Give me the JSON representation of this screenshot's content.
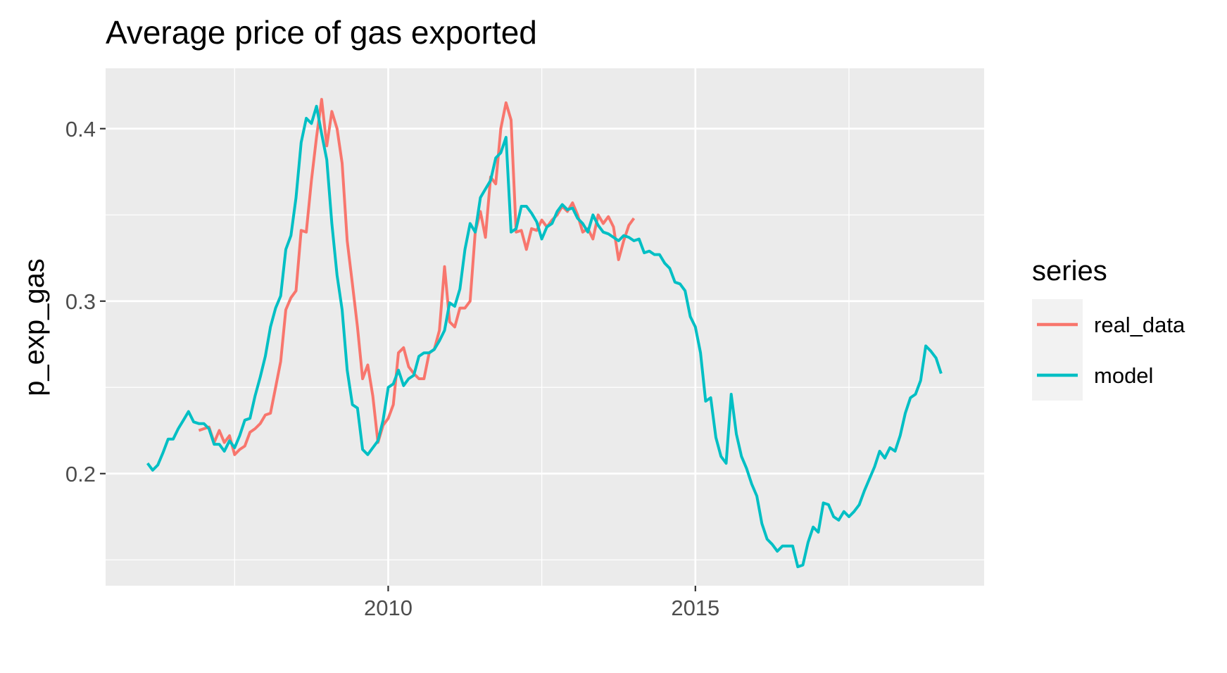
{
  "chart_data": {
    "type": "line",
    "title": "Average price of gas exported",
    "xlabel": "",
    "ylabel": "p_exp_gas",
    "xlim": [
      2005.4,
      2019.7
    ],
    "ylim": [
      0.135,
      0.435
    ],
    "x_ticks": [
      2010,
      2015
    ],
    "x_minor_ticks": [
      2007.5,
      2012.5,
      2017.5
    ],
    "x_tick_labels": [
      "2010",
      "2015"
    ],
    "y_ticks": [
      0.2,
      0.3,
      0.4
    ],
    "y_minor_ticks": [
      0.15,
      0.25,
      0.35
    ],
    "y_tick_labels": [
      "0.2",
      "0.3",
      "0.4"
    ],
    "grid": true,
    "legend": {
      "title": "series",
      "position": "right"
    },
    "series": [
      {
        "name": "real_data",
        "color": "#F8766D",
        "x": [
          2006.917,
          2007.0,
          2007.083,
          2007.167,
          2007.25,
          2007.333,
          2007.417,
          2007.5,
          2007.583,
          2007.667,
          2007.75,
          2007.833,
          2007.917,
          2008.0,
          2008.083,
          2008.167,
          2008.25,
          2008.333,
          2008.417,
          2008.5,
          2008.583,
          2008.667,
          2008.75,
          2008.833,
          2008.917,
          2009.0,
          2009.083,
          2009.167,
          2009.25,
          2009.333,
          2009.417,
          2009.5,
          2009.583,
          2009.667,
          2009.75,
          2009.833,
          2009.917,
          2010.0,
          2010.083,
          2010.167,
          2010.25,
          2010.333,
          2010.417,
          2010.5,
          2010.583,
          2010.667,
          2010.75,
          2010.833,
          2010.917,
          2011.0,
          2011.083,
          2011.167,
          2011.25,
          2011.333,
          2011.417,
          2011.5,
          2011.583,
          2011.667,
          2011.75,
          2011.833,
          2011.917,
          2012.0,
          2012.083,
          2012.167,
          2012.25,
          2012.333,
          2012.417,
          2012.5,
          2012.583,
          2012.667,
          2012.75,
          2012.833,
          2012.917,
          2013.0,
          2013.083,
          2013.167,
          2013.25,
          2013.333,
          2013.417,
          2013.5,
          2013.583,
          2013.667,
          2013.75,
          2013.833,
          2013.917,
          2014.0
        ],
        "y": [
          0.225,
          0.226,
          0.227,
          0.218,
          0.225,
          0.218,
          0.222,
          0.211,
          0.214,
          0.216,
          0.224,
          0.226,
          0.229,
          0.234,
          0.235,
          0.25,
          0.265,
          0.295,
          0.302,
          0.306,
          0.341,
          0.34,
          0.37,
          0.395,
          0.417,
          0.39,
          0.41,
          0.4,
          0.38,
          0.335,
          0.31,
          0.285,
          0.255,
          0.263,
          0.245,
          0.218,
          0.228,
          0.232,
          0.24,
          0.27,
          0.273,
          0.262,
          0.258,
          0.255,
          0.255,
          0.27,
          0.272,
          0.283,
          0.32,
          0.288,
          0.285,
          0.296,
          0.296,
          0.3,
          0.34,
          0.352,
          0.337,
          0.372,
          0.368,
          0.4,
          0.415,
          0.405,
          0.34,
          0.341,
          0.33,
          0.342,
          0.341,
          0.347,
          0.343,
          0.347,
          0.35,
          0.355,
          0.352,
          0.357,
          0.35,
          0.34,
          0.342,
          0.336,
          0.35,
          0.345,
          0.349,
          0.343,
          0.324,
          0.335,
          0.344,
          0.348
        ]
      },
      {
        "name": "model",
        "color": "#00BFC4",
        "x": [
          2006.083,
          2006.167,
          2006.25,
          2006.333,
          2006.417,
          2006.5,
          2006.583,
          2006.667,
          2006.75,
          2006.833,
          2006.917,
          2007.0,
          2007.083,
          2007.167,
          2007.25,
          2007.333,
          2007.417,
          2007.5,
          2007.583,
          2007.667,
          2007.75,
          2007.833,
          2007.917,
          2008.0,
          2008.083,
          2008.167,
          2008.25,
          2008.333,
          2008.417,
          2008.5,
          2008.583,
          2008.667,
          2008.75,
          2008.833,
          2008.917,
          2009.0,
          2009.083,
          2009.167,
          2009.25,
          2009.333,
          2009.417,
          2009.5,
          2009.583,
          2009.667,
          2009.75,
          2009.833,
          2009.917,
          2010.0,
          2010.083,
          2010.167,
          2010.25,
          2010.333,
          2010.417,
          2010.5,
          2010.583,
          2010.667,
          2010.75,
          2010.833,
          2010.917,
          2011.0,
          2011.083,
          2011.167,
          2011.25,
          2011.333,
          2011.417,
          2011.5,
          2011.583,
          2011.667,
          2011.75,
          2011.833,
          2011.917,
          2012.0,
          2012.083,
          2012.167,
          2012.25,
          2012.333,
          2012.417,
          2012.5,
          2012.583,
          2012.667,
          2012.75,
          2012.833,
          2012.917,
          2013.0,
          2013.083,
          2013.167,
          2013.25,
          2013.333,
          2013.417,
          2013.5,
          2013.583,
          2013.667,
          2013.75,
          2013.833,
          2013.917,
          2014.0,
          2014.083,
          2014.167,
          2014.25,
          2014.333,
          2014.417,
          2014.5,
          2014.583,
          2014.667,
          2014.75,
          2014.833,
          2014.917,
          2015.0,
          2015.083,
          2015.167,
          2015.25,
          2015.333,
          2015.417,
          2015.5,
          2015.583,
          2015.667,
          2015.75,
          2015.833,
          2015.917,
          2016.0,
          2016.083,
          2016.167,
          2016.25,
          2016.333,
          2016.417,
          2016.5,
          2016.583,
          2016.667,
          2016.75,
          2016.833,
          2016.917,
          2017.0,
          2017.083,
          2017.167,
          2017.25,
          2017.333,
          2017.417,
          2017.5,
          2017.583,
          2017.667,
          2017.75,
          2017.833,
          2017.917,
          2018.0,
          2018.083,
          2018.167,
          2018.25,
          2018.333,
          2018.417,
          2018.5,
          2018.583,
          2018.667,
          2018.75,
          2018.833,
          2018.917,
          2019.0
        ],
        "y": [
          0.206,
          0.202,
          0.205,
          0.212,
          0.22,
          0.22,
          0.226,
          0.231,
          0.236,
          0.23,
          0.229,
          0.229,
          0.226,
          0.217,
          0.217,
          0.213,
          0.219,
          0.215,
          0.222,
          0.231,
          0.232,
          0.245,
          0.256,
          0.268,
          0.285,
          0.296,
          0.303,
          0.33,
          0.338,
          0.36,
          0.392,
          0.406,
          0.403,
          0.413,
          0.397,
          0.382,
          0.345,
          0.315,
          0.295,
          0.26,
          0.24,
          0.238,
          0.214,
          0.211,
          0.215,
          0.219,
          0.231,
          0.25,
          0.252,
          0.26,
          0.251,
          0.255,
          0.257,
          0.268,
          0.27,
          0.27,
          0.272,
          0.277,
          0.283,
          0.299,
          0.297,
          0.307,
          0.33,
          0.345,
          0.34,
          0.36,
          0.365,
          0.37,
          0.383,
          0.386,
          0.395,
          0.34,
          0.342,
          0.355,
          0.355,
          0.351,
          0.346,
          0.336,
          0.343,
          0.345,
          0.352,
          0.356,
          0.353,
          0.354,
          0.348,
          0.345,
          0.34,
          0.35,
          0.344,
          0.34,
          0.339,
          0.337,
          0.335,
          0.338,
          0.337,
          0.335,
          0.336,
          0.328,
          0.329,
          0.327,
          0.327,
          0.322,
          0.319,
          0.311,
          0.31,
          0.306,
          0.291,
          0.285,
          0.27,
          0.242,
          0.244,
          0.221,
          0.21,
          0.206,
          0.246,
          0.223,
          0.21,
          0.203,
          0.194,
          0.187,
          0.171,
          0.162,
          0.159,
          0.155,
          0.158,
          0.158,
          0.158,
          0.146,
          0.147,
          0.16,
          0.169,
          0.166,
          0.183,
          0.182,
          0.175,
          0.173,
          0.178,
          0.175,
          0.178,
          0.182,
          0.19,
          0.197,
          0.204,
          0.213,
          0.209,
          0.215,
          0.213,
          0.222,
          0.235,
          0.244,
          0.246,
          0.254,
          0.274,
          0.271,
          0.267,
          0.258
        ]
      }
    ]
  }
}
